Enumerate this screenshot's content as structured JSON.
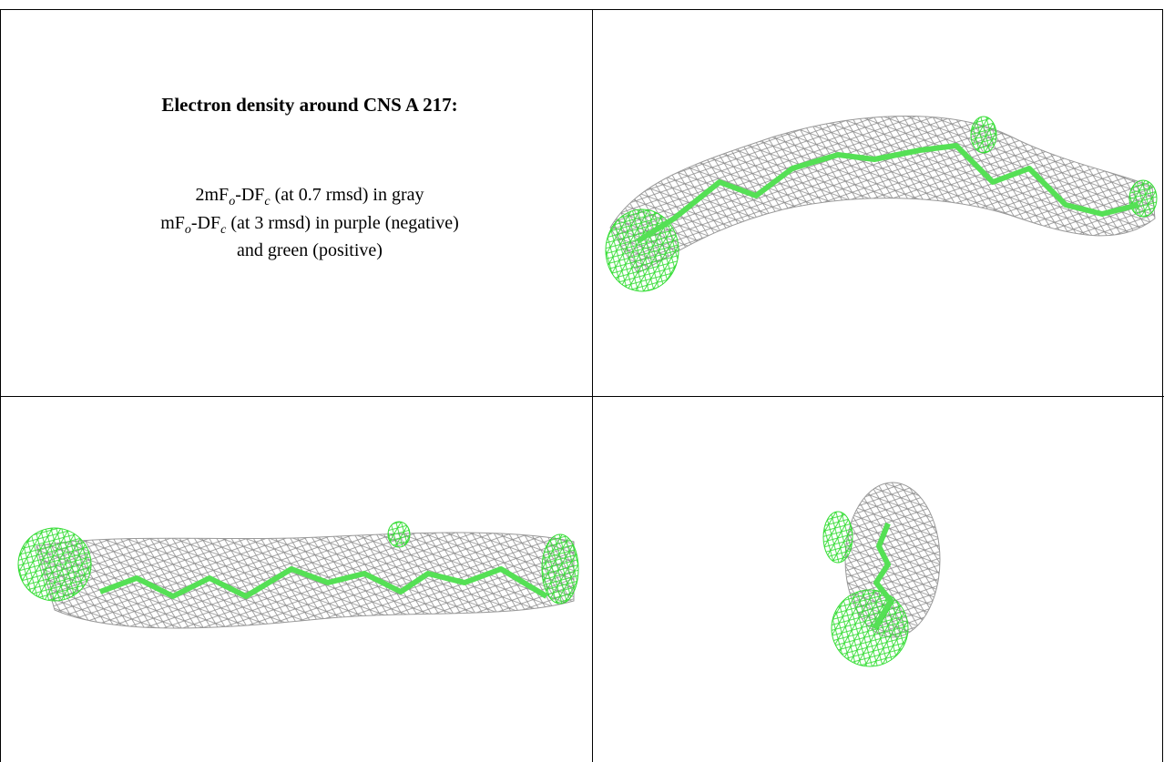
{
  "header": {
    "title": "Electron density around CNS A 217:"
  },
  "caption": {
    "lines": [
      [
        "2mF",
        "o",
        "-DF",
        "c",
        " (at 0.7 rmsd) in gray"
      ],
      [
        "mF",
        "o",
        "-DF",
        "c",
        " (at 3 rmsd) in purple (negative)"
      ],
      [
        "and green (positive)"
      ]
    ]
  }
}
